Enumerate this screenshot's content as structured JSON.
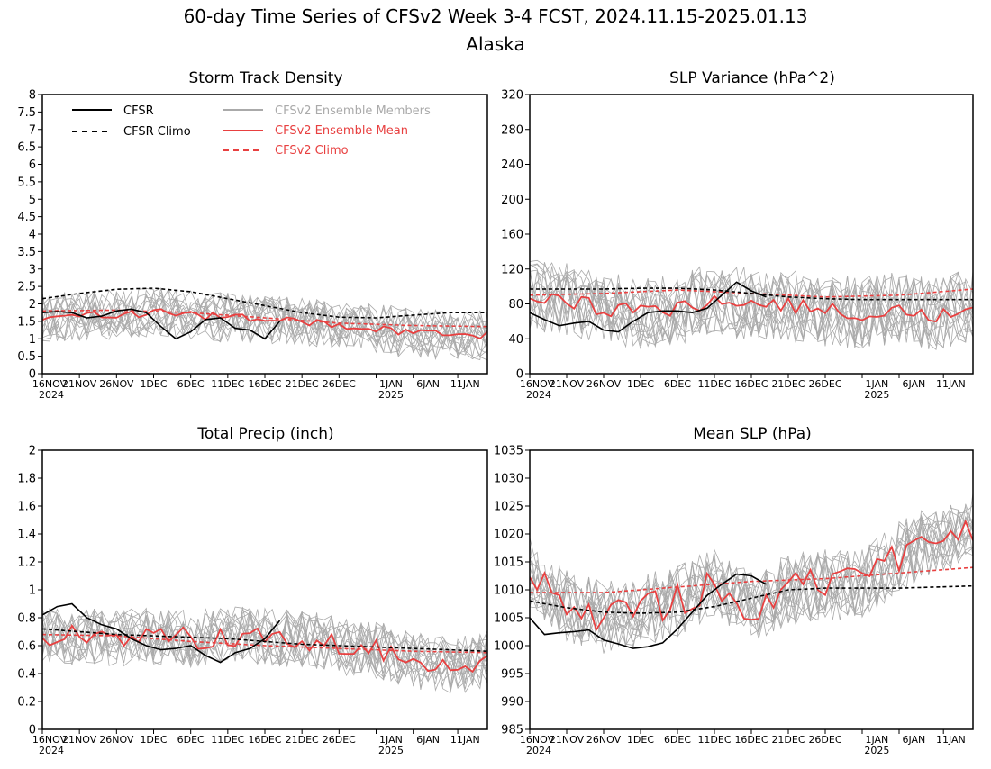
{
  "page": {
    "title": "60-day Time Series of CFSv2 Week 3-4 FCST, 2024.11.15-2025.01.13",
    "subtitle": "Alaska"
  },
  "legend": {
    "cfsr": "CFSR",
    "cfsr_climo": "CFSR Climo",
    "members": "CFSv2 Ensemble Members",
    "ens_mean": "CFSv2 Ensemble Mean",
    "cfsv2_climo": "CFSv2 Climo"
  },
  "colors": {
    "cfsr": "#000000",
    "members": "#aaaaaa",
    "ens_mean": "#e84040",
    "frame": "#000000"
  },
  "x_axis": {
    "tick_days": [
      1,
      6,
      11,
      16,
      21,
      26,
      31,
      36,
      41,
      46,
      51,
      57,
      63,
      68
    ],
    "tick_labels": [
      "16NOV",
      "21NOV",
      "26NOV",
      "1DEC",
      "6DEC",
      "11DEC",
      "16DEC",
      "21DEC",
      "26DEC",
      "1JAN",
      "6JAN",
      "11JAN"
    ],
    "label_days": [
      1,
      6,
      11,
      16,
      21,
      26,
      31,
      36,
      41,
      48,
      53,
      58
    ],
    "year_labels": [
      {
        "day": 1,
        "text": "2024"
      },
      {
        "day": 48,
        "text": "2025"
      }
    ],
    "range": [
      0,
      60
    ]
  },
  "chart_data": [
    {
      "type": "line",
      "title": "Storm Track Density",
      "ylim": [
        0,
        8
      ],
      "yticks": [
        0,
        0.5,
        1,
        1.5,
        2,
        2.5,
        3,
        3.5,
        4,
        4.5,
        5,
        5.5,
        6,
        6.5,
        7,
        7.5,
        8
      ],
      "ytick_labels": [
        "0",
        "0.5",
        "1",
        "1.5",
        "2",
        "2.5",
        "3",
        "3.5",
        "4",
        "4.5",
        "5",
        "5.5",
        "6",
        "6.5",
        "7",
        "7.5",
        "8"
      ],
      "members_count": 16,
      "members_spread": 0.55,
      "member_noise_seed": 11,
      "ens_mean_noise": 0.12,
      "series": {
        "cfsr": {
          "x": [
            0,
            2,
            4,
            6,
            8,
            10,
            12,
            14,
            16,
            18,
            20,
            22,
            24,
            26,
            28,
            30,
            31,
            32
          ],
          "y": [
            1.75,
            1.78,
            1.75,
            1.6,
            1.65,
            1.8,
            1.85,
            1.75,
            1.35,
            1.0,
            1.2,
            1.55,
            1.6,
            1.3,
            1.25,
            1.0,
            1.25,
            1.5
          ]
        },
        "cfsr_climo": {
          "x": [
            0,
            5,
            10,
            15,
            20,
            25,
            30,
            35,
            40,
            45,
            50,
            55,
            60
          ],
          "y": [
            2.15,
            2.3,
            2.42,
            2.45,
            2.35,
            2.15,
            1.95,
            1.75,
            1.62,
            1.6,
            1.68,
            1.75,
            1.75
          ]
        },
        "ens_mean": {
          "x": [
            0,
            5,
            10,
            15,
            20,
            25,
            30,
            35,
            40,
            45,
            50,
            55,
            60
          ],
          "y": [
            1.6,
            1.65,
            1.7,
            1.75,
            1.7,
            1.6,
            1.55,
            1.5,
            1.35,
            1.3,
            1.15,
            1.1,
            1.1
          ]
        },
        "cfsv2_climo": {
          "x": [
            0,
            10,
            20,
            30,
            40,
            50,
            60
          ],
          "y": [
            1.8,
            1.82,
            1.75,
            1.6,
            1.45,
            1.38,
            1.35
          ]
        }
      }
    },
    {
      "type": "line",
      "title": "SLP Variance (hPa^2)",
      "ylim": [
        0,
        320
      ],
      "yticks": [
        0,
        40,
        80,
        120,
        160,
        200,
        240,
        280,
        320
      ],
      "ytick_labels": [
        "0",
        "40",
        "80",
        "120",
        "160",
        "200",
        "240",
        "280",
        "320"
      ],
      "members_count": 16,
      "members_spread": 32,
      "member_noise_seed": 23,
      "ens_mean_noise": 9,
      "series": {
        "cfsr": {
          "x": [
            0,
            2,
            4,
            6,
            8,
            10,
            12,
            14,
            16,
            18,
            20,
            22,
            24,
            26,
            28,
            30,
            32
          ],
          "y": [
            70,
            62,
            55,
            58,
            60,
            50,
            48,
            60,
            70,
            72,
            72,
            70,
            75,
            90,
            105,
            95,
            88
          ]
        },
        "cfsr_climo": {
          "x": [
            0,
            5,
            10,
            15,
            20,
            25,
            30,
            35,
            40,
            45,
            50,
            55,
            60
          ],
          "y": [
            97,
            97,
            97,
            98,
            98,
            96,
            92,
            88,
            86,
            85,
            85,
            85,
            85
          ]
        },
        "ens_mean": {
          "x": [
            0,
            5,
            10,
            15,
            20,
            25,
            30,
            35,
            40,
            45,
            50,
            55,
            60
          ],
          "y": [
            90,
            85,
            75,
            70,
            75,
            85,
            80,
            78,
            72,
            70,
            75,
            68,
            80
          ]
        },
        "cfsv2_climo": {
          "x": [
            0,
            10,
            20,
            30,
            40,
            50,
            60
          ],
          "y": [
            90,
            92,
            96,
            92,
            88,
            90,
            97
          ]
        }
      }
    },
    {
      "type": "line",
      "title": "Total Precip (inch)",
      "ylim": [
        0,
        2
      ],
      "yticks": [
        0,
        0.2,
        0.4,
        0.6,
        0.8,
        1,
        1.2,
        1.4,
        1.6,
        1.8,
        2
      ],
      "ytick_labels": [
        "0",
        "0.2",
        "0.4",
        "0.6",
        "0.8",
        "1",
        "1.2",
        "1.4",
        "1.6",
        "1.8",
        "2"
      ],
      "members_count": 16,
      "members_spread": 0.16,
      "member_noise_seed": 37,
      "ens_mean_noise": 0.08,
      "series": {
        "cfsr": {
          "x": [
            0,
            2,
            4,
            6,
            8,
            10,
            12,
            14,
            16,
            18,
            20,
            22,
            24,
            26,
            28,
            30,
            32
          ],
          "y": [
            0.82,
            0.88,
            0.9,
            0.8,
            0.75,
            0.72,
            0.65,
            0.6,
            0.57,
            0.58,
            0.6,
            0.53,
            0.48,
            0.55,
            0.58,
            0.65,
            0.78
          ]
        },
        "cfsr_climo": {
          "x": [
            0,
            5,
            10,
            15,
            20,
            25,
            30,
            35,
            40,
            45,
            50,
            55,
            60
          ],
          "y": [
            0.72,
            0.7,
            0.68,
            0.67,
            0.66,
            0.65,
            0.63,
            0.61,
            0.6,
            0.59,
            0.58,
            0.57,
            0.56
          ]
        },
        "ens_mean": {
          "x": [
            0,
            5,
            10,
            15,
            20,
            25,
            30,
            35,
            40,
            45,
            50,
            55,
            60
          ],
          "y": [
            0.68,
            0.66,
            0.65,
            0.67,
            0.65,
            0.68,
            0.66,
            0.65,
            0.6,
            0.57,
            0.5,
            0.45,
            0.5
          ]
        },
        "cfsv2_climo": {
          "x": [
            0,
            10,
            20,
            30,
            40,
            50,
            60
          ],
          "y": [
            0.68,
            0.67,
            0.63,
            0.6,
            0.58,
            0.56,
            0.55
          ]
        }
      }
    },
    {
      "type": "line",
      "title": "Mean SLP (hPa)",
      "ylim": [
        985,
        1035
      ],
      "yticks": [
        985,
        990,
        995,
        1000,
        1005,
        1010,
        1015,
        1020,
        1025,
        1030,
        1035
      ],
      "ytick_labels": [
        "985",
        "990",
        "995",
        "1000",
        "1005",
        "1010",
        "1015",
        "1020",
        "1025",
        "1030",
        "1035"
      ],
      "members_count": 16,
      "members_spread": 5,
      "member_noise_seed": 53,
      "ens_mean_noise": 3,
      "series": {
        "cfsr": {
          "x": [
            0,
            2,
            4,
            6,
            8,
            10,
            12,
            14,
            16,
            18,
            20,
            22,
            24,
            26,
            28,
            30,
            32
          ],
          "y": [
            1005,
            1002,
            1002.3,
            1002.5,
            1002.8,
            1001,
            1000.3,
            999.5,
            999.8,
            1000.5,
            1003,
            1006,
            1009,
            1011,
            1012.8,
            1012.5,
            1011
          ]
        },
        "cfsr_climo": {
          "x": [
            0,
            5,
            10,
            15,
            20,
            25,
            30,
            35,
            40,
            45,
            50,
            55,
            60
          ],
          "y": [
            1008,
            1006.8,
            1006,
            1005.8,
            1006,
            1007,
            1008.5,
            1010,
            1010.3,
            1010.3,
            1010.3,
            1010.5,
            1010.7
          ]
        },
        "ens_mean": {
          "x": [
            0,
            5,
            10,
            15,
            20,
            25,
            30,
            35,
            40,
            45,
            50,
            55,
            60
          ],
          "y": [
            1013,
            1007,
            1005,
            1006,
            1008,
            1011,
            1007,
            1010,
            1011,
            1011,
            1016,
            1019,
            1021
          ]
        },
        "cfsv2_climo": {
          "x": [
            0,
            10,
            20,
            30,
            40,
            50,
            60
          ],
          "y": [
            1009.5,
            1009.5,
            1010.5,
            1011.5,
            1012,
            1013,
            1014
          ]
        }
      }
    }
  ]
}
